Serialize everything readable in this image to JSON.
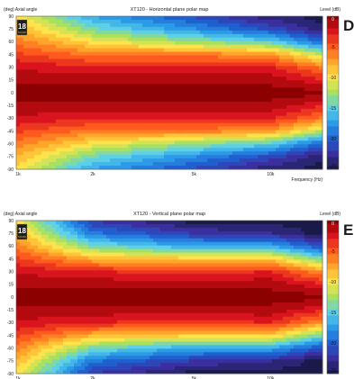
{
  "charts": [
    {
      "panel_letter": "D",
      "title": "XT120 - Horizontal plane polar map",
      "y_caption": "(deg)  Axial angle",
      "level_caption": "Level  (dB)",
      "x_caption": "Frequency  (Hz)",
      "badge_text": "18",
      "badge_subtext": "SOUND",
      "y_ticks": [
        "90",
        "75",
        "60",
        "45",
        "30",
        "15",
        "0",
        "-15",
        "-30",
        "-45",
        "-60",
        "-75",
        "-90"
      ],
      "x_ticks": [
        "1k",
        "2k",
        "5k",
        "10k"
      ],
      "colorbar_ticks": [
        "0",
        "-5",
        "-10",
        "-15",
        "-20",
        "-25"
      ]
    },
    {
      "panel_letter": "E",
      "title": "XT120 - Vertical plane polar map",
      "y_caption": "(deg)  Axial angle",
      "level_caption": "Level  (dB)",
      "x_caption": "",
      "badge_text": "18",
      "badge_subtext": "SOUND",
      "y_ticks": [
        "90",
        "75",
        "60",
        "45",
        "30",
        "15",
        "0",
        "-15",
        "-30",
        "-45",
        "-60",
        "-75",
        "-90"
      ],
      "x_ticks": [
        "1k",
        "2k",
        "5k",
        "10k"
      ],
      "colorbar_ticks": [
        "0",
        "-5",
        "-10",
        "-15",
        "-20",
        "-25"
      ]
    }
  ],
  "chart_data": [
    {
      "type": "heatmap",
      "title": "XT120 - Horizontal plane polar map",
      "xlabel": "Frequency (Hz)",
      "ylabel": "Axial angle (deg)",
      "x_scale": "log",
      "xlim": [
        1000,
        16000
      ],
      "ylim": [
        -90,
        90
      ],
      "zlabel": "Level (dB)",
      "zlim": [
        -25,
        0
      ],
      "frequencies_hz": [
        1000,
        2000,
        5000,
        10000,
        16000
      ],
      "angles_deg": [
        0,
        15,
        30,
        45,
        60,
        75,
        90
      ],
      "symmetric_about_zero": true,
      "levels_db": [
        [
          0,
          0,
          0,
          0,
          0
        ],
        [
          -1,
          -1,
          -1,
          -1,
          -3
        ],
        [
          -2,
          -3,
          -3,
          -3,
          -6
        ],
        [
          -4,
          -6,
          -6,
          -7,
          -12
        ],
        [
          -6,
          -10,
          -13,
          -15,
          -20
        ],
        [
          -8,
          -14,
          -18,
          -21,
          -24
        ],
        [
          -10,
          -17,
          -21,
          -24,
          -25
        ]
      ]
    },
    {
      "type": "heatmap",
      "title": "XT120 - Vertical plane polar map",
      "xlabel": "",
      "ylabel": "Axial angle (deg)",
      "x_scale": "log",
      "xlim": [
        1000,
        16000
      ],
      "ylim": [
        -90,
        90
      ],
      "zlabel": "Level (dB)",
      "zlim": [
        -25,
        0
      ],
      "frequencies_hz": [
        1000,
        2000,
        5000,
        10000,
        16000
      ],
      "angles_deg": [
        0,
        15,
        30,
        45,
        60,
        75,
        90
      ],
      "symmetric_about_zero": true,
      "levels_db": [
        [
          0,
          0,
          0,
          0,
          0
        ],
        [
          -1,
          -1,
          -1,
          -1,
          -3
        ],
        [
          -2,
          -3,
          -4,
          -3,
          -7
        ],
        [
          -4,
          -8,
          -9,
          -9,
          -14
        ],
        [
          -6,
          -14,
          -17,
          -17,
          -21
        ],
        [
          -8,
          -19,
          -22,
          -23,
          -25
        ],
        [
          -10,
          -22,
          -25,
          -25,
          -25
        ]
      ]
    }
  ],
  "colors": {
    "colormap": [
      "#1a1a4a",
      "#3b2fa0",
      "#1f5fd0",
      "#2b9be8",
      "#5cd0e6",
      "#a8e060",
      "#ffe34a",
      "#ffa52a",
      "#ff5a1e",
      "#d9141e",
      "#8b0000"
    ],
    "letter_color": "#1a1a1a",
    "badge_bg": "#1f1f1f",
    "badge_fg": "#f0c040"
  }
}
